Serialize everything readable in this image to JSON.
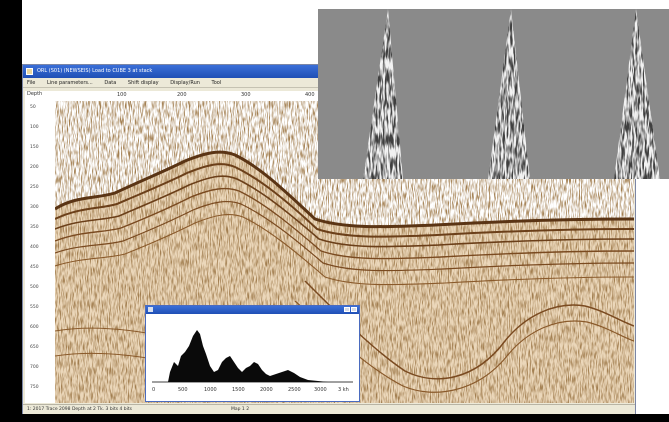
{
  "window": {
    "title": "ORL (S01) (NEWSEIS) Load to CUBE 3 at stack",
    "menu": [
      "File",
      "Line parameters...",
      "Data",
      "Shift display",
      "Display/Run",
      "Tool"
    ]
  },
  "plot": {
    "depth_label": "Depth",
    "ruler_ticks": [
      "100",
      "200",
      "300",
      "400"
    ],
    "y_ticks": [
      "50",
      "100",
      "150",
      "200",
      "250",
      "300",
      "350",
      "400",
      "450",
      "500",
      "550",
      "600",
      "650",
      "700",
      "750"
    ]
  },
  "status": {
    "left_text": "1: 2017 Trace 2098 Depth at 2 Tk. 3 bits 4 bits",
    "center_text": "Map 1 2"
  },
  "histogram": {
    "x_ticks": [
      "0",
      "500",
      "1000",
      "1500",
      "2000",
      "2500",
      "3000",
      "3 kh"
    ]
  },
  "colors": {
    "seismic_base": "#ebd7ba",
    "seismic_dark": "#5a3414",
    "gather_bg": "#8a8a8a",
    "histogram_fill": "#0a0a0a",
    "title_blue": "#1f4fb5"
  }
}
